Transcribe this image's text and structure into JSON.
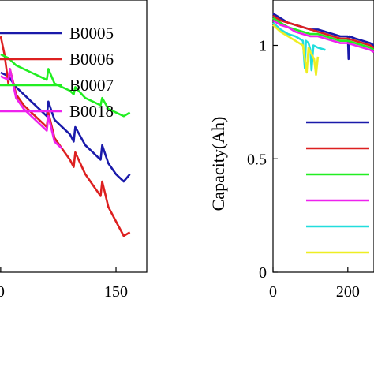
{
  "chart_data": [
    {
      "type": "line",
      "title": "",
      "xlabel": "",
      "ylabel": "",
      "xlim": [
        -5,
        190
      ],
      "ylim": [
        1.3,
        2.05
      ],
      "x_ticks": [
        {
          "v": 0,
          "label": "0"
        },
        {
          "v": 150,
          "label": "150"
        }
      ],
      "y_ticks": [],
      "grid": false,
      "legend_position": "top-right",
      "series": [
        {
          "name": "B0005",
          "color": "#1a1aaa",
          "x": [
            0,
            10,
            20,
            30,
            40,
            50,
            60,
            62,
            70,
            80,
            90,
            95,
            97,
            110,
            120,
            130,
            132,
            140,
            150,
            160,
            168
          ],
          "y": [
            1.85,
            1.84,
            1.81,
            1.79,
            1.77,
            1.75,
            1.73,
            1.77,
            1.72,
            1.7,
            1.68,
            1.66,
            1.7,
            1.65,
            1.63,
            1.61,
            1.65,
            1.6,
            1.57,
            1.55,
            1.57
          ]
        },
        {
          "name": "B0006",
          "color": "#dd2020",
          "x": [
            0,
            5,
            10,
            12,
            20,
            30,
            40,
            50,
            60,
            62,
            70,
            80,
            90,
            95,
            97,
            110,
            120,
            130,
            132,
            140,
            150,
            160,
            168
          ],
          "y": [
            1.95,
            1.9,
            1.82,
            1.86,
            1.79,
            1.76,
            1.74,
            1.72,
            1.7,
            1.74,
            1.67,
            1.64,
            1.61,
            1.59,
            1.63,
            1.57,
            1.54,
            1.51,
            1.55,
            1.48,
            1.44,
            1.4,
            1.41
          ]
        },
        {
          "name": "B0007",
          "color": "#22ee22",
          "x": [
            0,
            10,
            20,
            30,
            40,
            50,
            60,
            62,
            70,
            80,
            90,
            95,
            97,
            110,
            120,
            130,
            132,
            140,
            150,
            160,
            168
          ],
          "y": [
            1.9,
            1.89,
            1.87,
            1.86,
            1.85,
            1.84,
            1.83,
            1.86,
            1.82,
            1.81,
            1.8,
            1.79,
            1.81,
            1.78,
            1.77,
            1.76,
            1.78,
            1.75,
            1.74,
            1.73,
            1.74
          ]
        },
        {
          "name": "B0018",
          "color": "#ee22ee",
          "x": [
            0,
            10,
            12,
            20,
            30,
            40,
            50,
            55,
            60,
            62,
            70,
            80
          ],
          "y": [
            1.84,
            1.83,
            1.86,
            1.78,
            1.75,
            1.73,
            1.71,
            1.7,
            1.69,
            1.73,
            1.66,
            1.64
          ]
        }
      ]
    },
    {
      "type": "line",
      "title": "",
      "xlabel": "",
      "ylabel": "Capacity(Ah)",
      "xlim": [
        0,
        270
      ],
      "ylim": [
        0,
        1.2
      ],
      "x_ticks": [
        {
          "v": 0,
          "label": "0"
        },
        {
          "v": 200,
          "label": "200"
        }
      ],
      "y_ticks": [
        {
          "v": 0,
          "label": "0"
        },
        {
          "v": 0.5,
          "label": "0.5"
        },
        {
          "v": 1,
          "label": "1"
        }
      ],
      "grid": false,
      "legend_position": "right",
      "series": [
        {
          "color": "#1a1aaa",
          "x": [
            0,
            20,
            40,
            60,
            80,
            100,
            120,
            140,
            160,
            180,
            200,
            202,
            204,
            220,
            240,
            260,
            270
          ],
          "y": [
            1.14,
            1.12,
            1.1,
            1.09,
            1.08,
            1.07,
            1.07,
            1.06,
            1.05,
            1.04,
            1.04,
            0.94,
            1.04,
            1.03,
            1.02,
            1.01,
            1.0
          ]
        },
        {
          "color": "#dd2020",
          "x": [
            0,
            20,
            40,
            60,
            80,
            100,
            120,
            140,
            160,
            180,
            200,
            220,
            240,
            260,
            270
          ],
          "y": [
            1.13,
            1.11,
            1.1,
            1.09,
            1.08,
            1.07,
            1.06,
            1.05,
            1.04,
            1.03,
            1.03,
            1.02,
            1.01,
            1.0,
            0.99
          ]
        },
        {
          "color": "#22ee22",
          "x": [
            0,
            20,
            40,
            60,
            80,
            100,
            120,
            140,
            160,
            180,
            200,
            220,
            240,
            260,
            270
          ],
          "y": [
            1.12,
            1.1,
            1.08,
            1.07,
            1.06,
            1.05,
            1.05,
            1.04,
            1.03,
            1.02,
            1.02,
            1.01,
            1.0,
            0.99,
            0.98
          ]
        },
        {
          "color": "#ee22ee",
          "x": [
            0,
            20,
            40,
            60,
            80,
            100,
            120,
            140,
            160,
            180,
            200,
            220,
            240,
            260,
            270
          ],
          "y": [
            1.11,
            1.09,
            1.08,
            1.06,
            1.05,
            1.04,
            1.04,
            1.03,
            1.02,
            1.01,
            1.01,
            1.0,
            0.99,
            0.98,
            0.97
          ]
        },
        {
          "color": "#22dddd",
          "x": [
            0,
            20,
            40,
            60,
            80,
            85,
            88,
            95,
            100,
            103,
            108,
            120,
            140
          ],
          "y": [
            1.1,
            1.07,
            1.05,
            1.04,
            1.02,
            0.9,
            1.02,
            1.01,
            0.98,
            0.89,
            1.0,
            0.99,
            0.98
          ]
        },
        {
          "color": "#eeee22",
          "x": [
            0,
            20,
            40,
            60,
            80,
            90,
            95,
            100,
            110,
            115,
            120
          ],
          "y": [
            1.09,
            1.06,
            1.04,
            1.02,
            1.0,
            0.88,
            0.99,
            0.97,
            0.94,
            0.87,
            0.95
          ]
        }
      ]
    }
  ]
}
